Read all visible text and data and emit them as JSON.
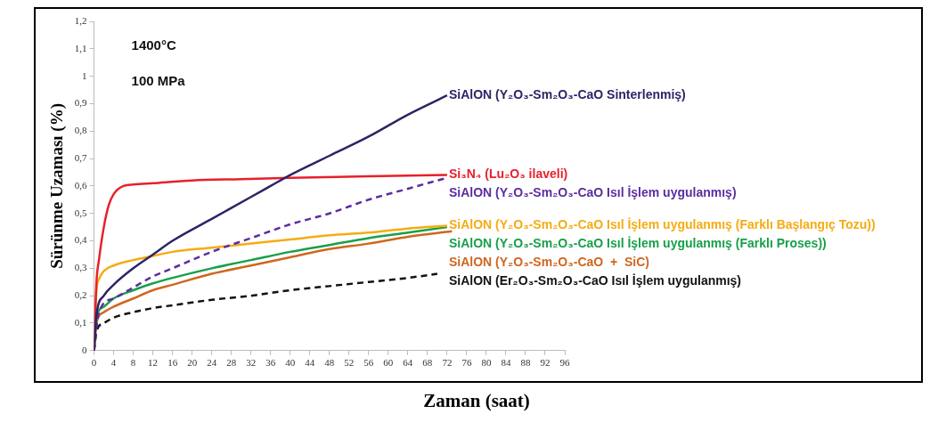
{
  "chart_data": {
    "type": "line",
    "xlabel": "Zaman (saat)",
    "ylabel": "Sürünme Uzaması (%)",
    "annotations": [
      "1400°C",
      "100 MPa"
    ],
    "xlim": [
      0,
      96
    ],
    "xticks": [
      0,
      4,
      8,
      12,
      16,
      20,
      24,
      28,
      32,
      36,
      40,
      44,
      48,
      52,
      56,
      60,
      64,
      68,
      72,
      76,
      80,
      84,
      88,
      92,
      96
    ],
    "ylim": [
      0,
      1.2
    ],
    "yticks": [
      0,
      {
        "value": 0.1,
        "label": "0,1"
      },
      {
        "value": 0.2,
        "label": "0,2"
      },
      {
        "value": 0.3,
        "label": "0,3"
      },
      {
        "value": 0.4,
        "label": "0,4"
      },
      {
        "value": 0.5,
        "label": "0,5"
      },
      {
        "value": 0.6,
        "label": "0,6"
      },
      {
        "value": 0.7,
        "label": "0,7"
      },
      {
        "value": 0.8,
        "label": "0,8"
      },
      {
        "value": 0.9,
        "label": "0,9"
      },
      1,
      {
        "value": 1.1,
        "label": "1,1"
      },
      {
        "value": 1.2,
        "label": "1,2"
      }
    ],
    "grid": false,
    "legend": false,
    "marker": "none",
    "series": [
      {
        "name": "SiAlON (Y₂O₃-Sm₂O₃-CaO Sinterlenmiş)",
        "color": "#2b2566",
        "line_style": "solid",
        "x": [
          0,
          0.5,
          2,
          4,
          8,
          12,
          16,
          24,
          32,
          36,
          40,
          48,
          56,
          64,
          72
        ],
        "values": [
          0,
          0.13,
          0.2,
          0.24,
          0.3,
          0.35,
          0.4,
          0.48,
          0.56,
          0.6,
          0.64,
          0.71,
          0.78,
          0.86,
          0.93
        ]
      },
      {
        "name": "Si₃N₄ (Lu₂O₃ ilaveli)",
        "color": "#e8202a",
        "line_style": "solid",
        "x": [
          0,
          0.5,
          1,
          2,
          3,
          4,
          6,
          8,
          12,
          20,
          30,
          40,
          56,
          72
        ],
        "values": [
          0,
          0.25,
          0.33,
          0.45,
          0.53,
          0.57,
          0.6,
          0.605,
          0.61,
          0.62,
          0.625,
          0.63,
          0.635,
          0.64
        ]
      },
      {
        "name": "SiAlON (Y₂O₃-Sm₂O₃-CaO Isıl İşlem uygulanmış)",
        "color": "#5b2da0",
        "line_style": "dashed",
        "x": [
          0,
          1,
          4,
          8,
          12,
          16,
          24,
          32,
          40,
          48,
          56,
          64,
          72
        ],
        "values": [
          0,
          0.14,
          0.19,
          0.23,
          0.27,
          0.3,
          0.36,
          0.41,
          0.46,
          0.5,
          0.55,
          0.59,
          0.63
        ]
      },
      {
        "name": "SiAlON (Y₂O₃-Sm₂O₃-CaO Isıl İşlem uygulanmış (Farklı Başlangıç Tozu))",
        "color": "#f5ac12",
        "line_style": "solid",
        "x": [
          0,
          0.5,
          1,
          2,
          4,
          8,
          12,
          16,
          24,
          32,
          40,
          48,
          56,
          64,
          72
        ],
        "values": [
          0,
          0.22,
          0.26,
          0.29,
          0.31,
          0.33,
          0.345,
          0.36,
          0.375,
          0.39,
          0.405,
          0.42,
          0.43,
          0.445,
          0.455
        ]
      },
      {
        "name": "SiAlON (Y₂O₃-Sm₂O₃-CaO Isıl İşlem uygulanmış (Farklı Proses))",
        "color": "#16a04a",
        "line_style": "solid",
        "x": [
          0,
          0.5,
          2,
          4,
          8,
          12,
          16,
          24,
          32,
          40,
          48,
          56,
          64,
          72
        ],
        "values": [
          0,
          0.12,
          0.16,
          0.19,
          0.22,
          0.245,
          0.265,
          0.3,
          0.33,
          0.36,
          0.385,
          0.41,
          0.43,
          0.45
        ]
      },
      {
        "name": "SiAlON (Y₂O₃-Sm₂O₃-CaO  +  SiC)",
        "color": "#d0661e",
        "line_style": "solid",
        "x": [
          0,
          0.5,
          2,
          4,
          8,
          12,
          16,
          24,
          32,
          40,
          48,
          56,
          64,
          73
        ],
        "values": [
          0,
          0.1,
          0.14,
          0.16,
          0.19,
          0.22,
          0.24,
          0.28,
          0.31,
          0.34,
          0.37,
          0.39,
          0.415,
          0.435
        ]
      },
      {
        "name": "SiAlON (Er₂O₃-Sm₂O₃-CaO Isıl İşlem uygulanmış)",
        "color": "#111111",
        "line_style": "dashed",
        "x": [
          0,
          0.5,
          2,
          4,
          8,
          12,
          16,
          24,
          32,
          40,
          48,
          56,
          64,
          70
        ],
        "values": [
          0,
          0.07,
          0.1,
          0.12,
          0.14,
          0.155,
          0.165,
          0.185,
          0.2,
          0.22,
          0.235,
          0.25,
          0.265,
          0.28
        ]
      }
    ]
  }
}
